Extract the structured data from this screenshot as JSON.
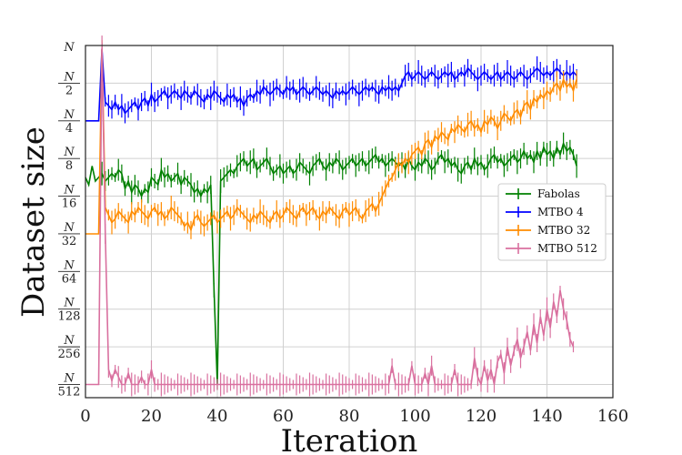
{
  "chart_data": {
    "type": "line",
    "title": "",
    "xlabel": "Iteration",
    "ylabel": "Dataset size",
    "xlim": [
      0,
      160
    ],
    "x_ticks": [
      0,
      20,
      40,
      60,
      80,
      100,
      120,
      140,
      160
    ],
    "x_tick_labels": [
      "0",
      "20",
      "40",
      "60",
      "80",
      "100",
      "120",
      "140",
      "160"
    ],
    "y_ticks": [
      {
        "exp": 0,
        "num": "N",
        "den": ""
      },
      {
        "exp": -1,
        "num": "N",
        "den": "2"
      },
      {
        "exp": -2,
        "num": "N",
        "den": "4"
      },
      {
        "exp": -3,
        "num": "N",
        "den": "8"
      },
      {
        "exp": -4,
        "num": "N",
        "den": "16"
      },
      {
        "exp": -5,
        "num": "N",
        "den": "32"
      },
      {
        "exp": -6,
        "num": "N",
        "den": "64"
      },
      {
        "exp": -7,
        "num": "N",
        "den": "128"
      },
      {
        "exp": -8,
        "num": "N",
        "den": "256"
      },
      {
        "exp": -9,
        "num": "N",
        "den": "512"
      }
    ],
    "y_scale": "log2 (value shown as exponent of N)",
    "ylim": [
      -9.35,
      0
    ],
    "grid": true,
    "legend_position": "center-right",
    "series": [
      {
        "name": "Fabolas",
        "color": "#008000",
        "start_x": 0,
        "step": 1,
        "values": [
          -3.5,
          -3.7,
          -3.2,
          -3.6,
          -3.5,
          -3.4,
          -3.6,
          -3.5,
          -3.4,
          -3.5,
          -3.3,
          -3.4,
          -3.8,
          -3.6,
          -3.9,
          -3.7,
          -3.8,
          -4.0,
          -3.8,
          -3.9,
          -3.5,
          -3.6,
          -3.7,
          -3.3,
          -3.5,
          -3.4,
          -3.6,
          -3.5,
          -3.4,
          -3.7,
          -3.5,
          -3.6,
          -3.7,
          -3.9,
          -3.8,
          -4.0,
          -3.8,
          -3.9,
          -3.7,
          -6.5,
          -9.0,
          -3.6,
          -3.5,
          -3.4,
          -3.3,
          -3.4,
          -3.2,
          -3.1,
          -3.0,
          -3.2,
          -3.1,
          -3.0,
          -3.3,
          -3.2,
          -3.1,
          -3.0,
          -3.2,
          -3.4,
          -3.3,
          -3.2,
          -3.4,
          -3.3,
          -3.2,
          -3.4,
          -3.3,
          -3.1,
          -3.2,
          -3.3,
          -3.4,
          -3.2,
          -3.1,
          -3.0,
          -3.2,
          -3.3,
          -3.1,
          -3.2,
          -3.0,
          -3.1,
          -3.3,
          -3.2,
          -3.1,
          -3.0,
          -3.2,
          -3.1,
          -3.0,
          -3.2,
          -3.1,
          -3.0,
          -2.9,
          -3.1,
          -3.0,
          -3.2,
          -3.1,
          -3.0,
          -3.1,
          -3.2,
          -3.1,
          -3.3,
          -3.0,
          -3.2,
          -3.3,
          -3.1,
          -3.2,
          -3.0,
          -3.1,
          -3.3,
          -3.2,
          -3.0,
          -2.9,
          -3.1,
          -3.0,
          -3.2,
          -3.1,
          -3.3,
          -3.4,
          -3.2,
          -3.1,
          -3.3,
          -3.0,
          -3.2,
          -3.1,
          -3.3,
          -3.2,
          -3.0,
          -2.9,
          -3.1,
          -3.0,
          -3.2,
          -3.1,
          -3.0,
          -2.9,
          -3.1,
          -3.0,
          -2.8,
          -3.0,
          -2.9,
          -3.1,
          -2.8,
          -3.0,
          -2.7,
          -2.9,
          -2.8,
          -3.0,
          -2.7,
          -2.9,
          -2.6,
          -2.8,
          -2.7,
          -2.9,
          -3.2
        ]
      },
      {
        "name": "MTBO 4",
        "color": "#0000ff",
        "start_x": 0,
        "step": 1,
        "values": [
          -2,
          -2,
          -2,
          -2,
          -2,
          -0.1,
          -1.5,
          -1.6,
          -1.7,
          -1.5,
          -1.7,
          -1.6,
          -1.8,
          -1.7,
          -1.6,
          -1.5,
          -1.7,
          -1.5,
          -1.4,
          -1.6,
          -1.3,
          -1.5,
          -1.4,
          -1.3,
          -1.2,
          -1.4,
          -1.3,
          -1.2,
          -1.3,
          -1.4,
          -1.2,
          -1.3,
          -1.4,
          -1.2,
          -1.3,
          -1.4,
          -1.5,
          -1.3,
          -1.4,
          -1.2,
          -1.3,
          -1.4,
          -1.5,
          -1.3,
          -1.4,
          -1.3,
          -1.5,
          -1.4,
          -1.6,
          -1.4,
          -1.3,
          -1.4,
          -1.2,
          -1.3,
          -1.1,
          -1.2,
          -1.3,
          -1.2,
          -1.1,
          -1.2,
          -1.3,
          -1.1,
          -1.2,
          -1.1,
          -1.3,
          -1.2,
          -1.1,
          -1.2,
          -1.3,
          -1.2,
          -1.1,
          -1.2,
          -1.3,
          -1.2,
          -1.3,
          -1.4,
          -1.2,
          -1.3,
          -1.2,
          -1.3,
          -1.2,
          -1.1,
          -1.2,
          -1.3,
          -1.2,
          -1.1,
          -1.2,
          -1.1,
          -1.2,
          -1.3,
          -1.1,
          -1.2,
          -1.1,
          -1.2,
          -1.1,
          -1.2,
          -1.0,
          -0.8,
          -0.7,
          -0.9,
          -0.8,
          -0.7,
          -0.8,
          -0.9,
          -0.8,
          -0.7,
          -0.8,
          -0.9,
          -0.8,
          -0.7,
          -0.8,
          -0.7,
          -0.9,
          -0.8,
          -0.7,
          -0.8,
          -0.6,
          -0.7,
          -0.8,
          -0.9,
          -0.8,
          -0.7,
          -0.8,
          -0.9,
          -0.8,
          -0.7,
          -0.9,
          -0.8,
          -0.7,
          -0.8,
          -0.9,
          -0.8,
          -0.7,
          -0.8,
          -0.9,
          -0.8,
          -0.7,
          -0.6,
          -0.7,
          -0.8,
          -0.7,
          -0.8,
          -0.7,
          -0.6,
          -0.7,
          -0.8,
          -0.7,
          -0.8,
          -0.7,
          -0.8
        ]
      },
      {
        "name": "MTBO 32",
        "color": "#ff8c00",
        "start_x": 0,
        "step": 1,
        "values": [
          -5,
          -5,
          -5,
          -5,
          -5,
          -0.1,
          -4.3,
          -4.5,
          -4.7,
          -4.6,
          -4.4,
          -4.5,
          -4.6,
          -4.7,
          -4.4,
          -4.5,
          -4.3,
          -4.4,
          -4.5,
          -4.6,
          -4.4,
          -4.3,
          -4.5,
          -4.4,
          -4.6,
          -4.5,
          -4.3,
          -4.4,
          -4.5,
          -4.6,
          -4.8,
          -4.7,
          -4.9,
          -4.6,
          -4.5,
          -4.7,
          -4.8,
          -4.7,
          -4.6,
          -4.5,
          -4.7,
          -4.6,
          -4.5,
          -4.4,
          -4.6,
          -4.5,
          -4.3,
          -4.4,
          -4.5,
          -4.6,
          -4.7,
          -4.5,
          -4.6,
          -4.4,
          -4.5,
          -4.6,
          -4.7,
          -4.5,
          -4.4,
          -4.6,
          -4.5,
          -4.3,
          -4.4,
          -4.5,
          -4.6,
          -4.4,
          -4.3,
          -4.5,
          -4.4,
          -4.3,
          -4.5,
          -4.6,
          -4.4,
          -4.5,
          -4.3,
          -4.4,
          -4.5,
          -4.6,
          -4.4,
          -4.3,
          -4.5,
          -4.4,
          -4.3,
          -4.5,
          -4.6,
          -4.4,
          -4.3,
          -4.2,
          -4.4,
          -4.2,
          -4.0,
          -3.8,
          -3.6,
          -3.5,
          -3.3,
          -3.1,
          -3.2,
          -3.0,
          -3.1,
          -2.9,
          -2.8,
          -2.7,
          -2.9,
          -2.6,
          -2.5,
          -2.7,
          -2.4,
          -2.5,
          -2.3,
          -2.4,
          -2.5,
          -2.2,
          -2.3,
          -2.1,
          -2.2,
          -2.3,
          -2.1,
          -2.0,
          -2.2,
          -2.1,
          -2.3,
          -2.0,
          -2.1,
          -1.9,
          -2.0,
          -2.2,
          -2.0,
          -1.8,
          -1.9,
          -2.0,
          -1.8,
          -1.7,
          -1.9,
          -1.6,
          -1.5,
          -1.7,
          -1.4,
          -1.5,
          -1.3,
          -1.4,
          -1.2,
          -1.3,
          -1.1,
          -1.0,
          -1.2,
          -0.9,
          -1.1,
          -1.0,
          -1.2,
          -0.9
        ]
      },
      {
        "name": "MTBO 512",
        "color": "#d9709f",
        "start_x": 0,
        "step": 1,
        "values": [
          -9,
          -9,
          -9,
          -9,
          -9,
          -0.05,
          -5.0,
          -8.6,
          -8.9,
          -8.6,
          -8.8,
          -9,
          -9,
          -8.7,
          -9,
          -9,
          -9,
          -8.8,
          -9,
          -9,
          -8.6,
          -9,
          -9,
          -9,
          -9,
          -9,
          -9,
          -9,
          -9,
          -9,
          -9,
          -9,
          -9,
          -9,
          -9,
          -9,
          -9,
          -9,
          -9,
          -9,
          -9,
          -9,
          -9,
          -9,
          -9,
          -9,
          -9,
          -9,
          -9,
          -9,
          -9,
          -9,
          -9,
          -9,
          -9,
          -9,
          -9,
          -9,
          -9,
          -9,
          -9,
          -9,
          -9,
          -9,
          -9,
          -9,
          -9,
          -9,
          -9,
          -9,
          -9,
          -9,
          -9,
          -9,
          -9,
          -9,
          -9,
          -9,
          -9,
          -9,
          -9,
          -9,
          -9,
          -9,
          -9,
          -9,
          -9,
          -9,
          -9,
          -9,
          -9,
          -9,
          -9,
          -8.5,
          -9,
          -9,
          -9,
          -9,
          -9,
          -8.5,
          -9,
          -9,
          -9,
          -8.7,
          -9,
          -8.5,
          -9,
          -9,
          -9,
          -9,
          -9,
          -9,
          -8.6,
          -9,
          -9,
          -9,
          -9,
          -9,
          -8.3,
          -8.8,
          -9,
          -8.5,
          -8.9,
          -8.6,
          -9,
          -8.4,
          -8.2,
          -8.7,
          -8.0,
          -8.5,
          -8.1,
          -7.8,
          -8.3,
          -8.0,
          -7.6,
          -8.1,
          -7.4,
          -7.9,
          -7.2,
          -7.7,
          -7.0,
          -7.5,
          -6.8,
          -7.2,
          -6.5,
          -7.0,
          -7.3,
          -7.8,
          -8.0
        ]
      }
    ]
  }
}
